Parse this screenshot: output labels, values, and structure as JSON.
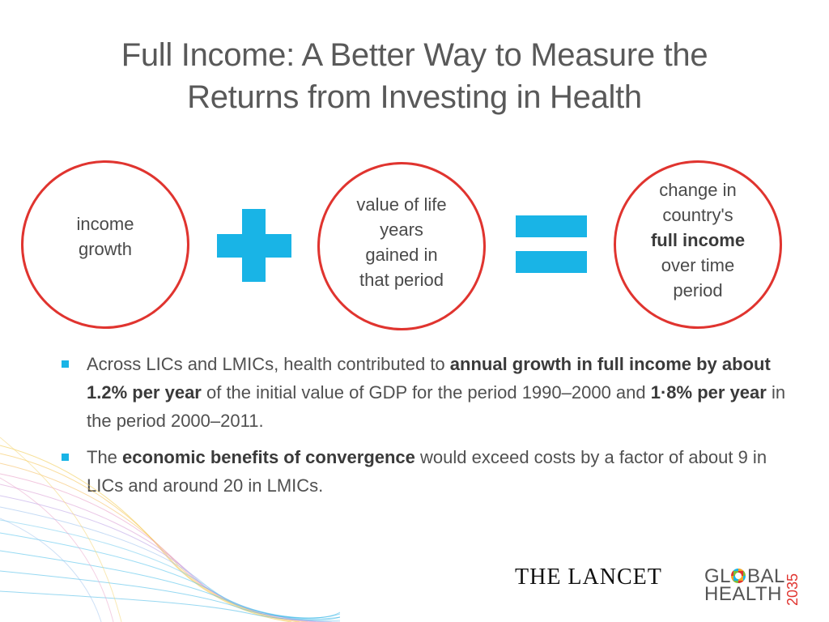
{
  "title": {
    "line1": "Full Income: A Better Way to Measure the",
    "line2": "Returns from Investing in Health"
  },
  "equation": {
    "term1": {
      "line1": "income",
      "line2": "growth"
    },
    "operator1": "plus",
    "term2": {
      "line1": "value of life",
      "line2": "years",
      "line3": "gained in",
      "line4": "that period"
    },
    "operator2": "equals",
    "result": {
      "line1": "change in",
      "line2": "country's",
      "line3_bold": "full income",
      "line4": "over time",
      "line5": "period"
    }
  },
  "bullets": [
    {
      "t1": "Across LICs and LMICs, health contributed to ",
      "b1": "annual growth in full income by about 1.2% per year",
      "t2": " of the initial value of GDP for the period 1990–2000 and ",
      "b2": "1·8% per year",
      "t3": " in the period 2000–2011."
    },
    {
      "t1": "The ",
      "b1": "economic benefits of convergence",
      "t2": " would exceed costs by a factor of about 9 in LICs and around 20 in LMICs."
    }
  ],
  "logos": {
    "lancet": "THE LANCET",
    "global_health": {
      "word1_a": "GL",
      "word1_b": "BAL",
      "word2": "HEALTH",
      "year": "2035"
    }
  },
  "colors": {
    "accent_blue": "#19b4e6",
    "circle_red": "#e0342f",
    "text_gray": "#555555"
  }
}
